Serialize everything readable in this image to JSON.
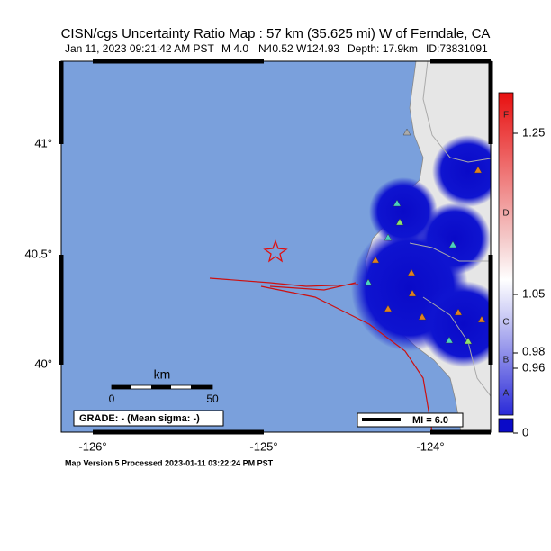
{
  "header": {
    "title": "CISN/cgs Uncertainty Ratio Map : 57 km (35.625 mi) W of Ferndale, CA",
    "subtitle": [
      "Jan 11, 2023 09:21:42 AM PST",
      "M 4.0",
      "N40.52 W124.93",
      "Depth: 17.9km",
      "ID:73831091"
    ]
  },
  "map": {
    "lat_labels": [
      "41°",
      "40.5°",
      "40°"
    ],
    "lon_labels": [
      "-126°",
      "-125°",
      "-124°"
    ],
    "scale_bar": {
      "unit": "km",
      "labels": [
        "0",
        "50"
      ]
    },
    "grade": "GRADE: - (Mean sigma: -)",
    "mi_legend": "MI = 6.0"
  },
  "colorbar": {
    "tick_labels": [
      "1.25",
      "1.05",
      "0.98",
      "0.96",
      "0"
    ],
    "grades": [
      "F",
      "D",
      "C",
      "B",
      "A"
    ]
  },
  "footer": "Map Version 5 Processed 2023-01-11 03:22:24 PM PST"
}
